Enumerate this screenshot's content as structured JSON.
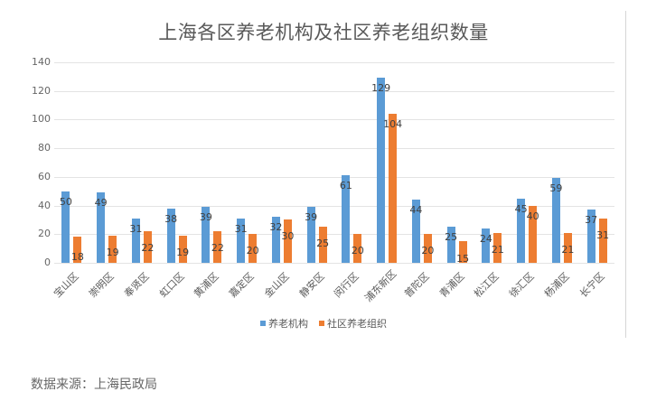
{
  "chart_data": {
    "type": "bar",
    "title": "上海各区养老机构及社区养老组织数量",
    "xlabel": "",
    "ylabel": "",
    "ylim": [
      0,
      140
    ],
    "yticks": [
      0,
      20,
      40,
      60,
      80,
      100,
      120,
      140
    ],
    "grid": true,
    "legend_position": "bottom",
    "categories": [
      "宝山区",
      "崇明区",
      "奉贤区",
      "虹口区",
      "黄浦区",
      "嘉定区",
      "金山区",
      "静安区",
      "闵行区",
      "浦东新区",
      "普陀区",
      "青浦区",
      "松江区",
      "徐汇区",
      "杨浦区",
      "长宁区"
    ],
    "series": [
      {
        "name": "养老机构",
        "color": "#5b9bd5",
        "values": [
          50,
          49,
          31,
          38,
          39,
          31,
          32,
          39,
          61,
          129,
          44,
          25,
          24,
          45,
          59,
          37
        ]
      },
      {
        "name": "社区养老组织",
        "color": "#ed7d31",
        "values": [
          18,
          19,
          22,
          19,
          22,
          20,
          30,
          25,
          20,
          104,
          20,
          15,
          21,
          40,
          21,
          31
        ]
      }
    ]
  },
  "source": "数据来源：上海民政局"
}
